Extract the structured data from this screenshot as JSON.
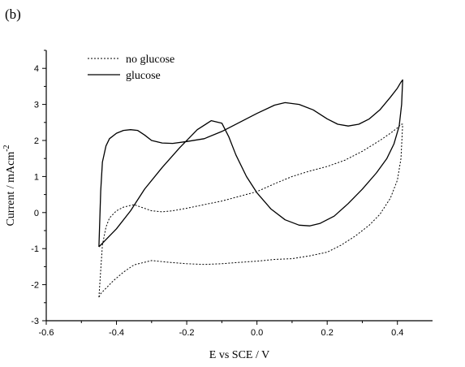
{
  "panel_label": "(b)",
  "chart_data": {
    "type": "line",
    "xlabel": "E vs SCE / V",
    "ylabel": "Current / mAcm",
    "ylabel_sup": "-2",
    "xlim": [
      -0.6,
      0.5
    ],
    "ylim": [
      -3,
      4.5
    ],
    "x_ticks": [
      -0.6,
      -0.4,
      -0.2,
      0.0,
      0.2,
      0.4
    ],
    "x_tick_labels": [
      "-0.6",
      "-0.4",
      "-0.2",
      "0.0",
      "0.2",
      "0.4"
    ],
    "y_ticks": [
      -3,
      -2,
      -1,
      0,
      1,
      2,
      3,
      4
    ],
    "y_tick_labels": [
      "-3",
      "-2",
      "-1",
      "0",
      "1",
      "2",
      "3",
      "4"
    ],
    "grid": false,
    "legend_position": "top-left",
    "series": [
      {
        "name": "no glucose",
        "style": "dotted",
        "x": [
          -0.45,
          -0.445,
          -0.44,
          -0.43,
          -0.42,
          -0.4,
          -0.38,
          -0.35,
          -0.33,
          -0.3,
          -0.27,
          -0.24,
          -0.2,
          -0.15,
          -0.1,
          -0.05,
          0.0,
          0.05,
          0.1,
          0.15,
          0.2,
          0.25,
          0.3,
          0.35,
          0.38,
          0.4,
          0.41,
          0.415,
          0.41,
          0.4,
          0.38,
          0.35,
          0.32,
          0.28,
          0.24,
          0.2,
          0.15,
          0.1,
          0.05,
          0.0,
          -0.05,
          -0.1,
          -0.15,
          -0.2,
          -0.25,
          -0.3,
          -0.35,
          -0.38,
          -0.41,
          -0.43,
          -0.445,
          -0.45
        ],
        "y": [
          -2.35,
          -1.6,
          -0.9,
          -0.4,
          -0.15,
          0.05,
          0.15,
          0.22,
          0.15,
          0.05,
          0.02,
          0.05,
          0.12,
          0.22,
          0.32,
          0.45,
          0.58,
          0.8,
          1.0,
          1.15,
          1.28,
          1.45,
          1.7,
          2.0,
          2.2,
          2.35,
          2.45,
          2.45,
          1.5,
          0.9,
          0.4,
          -0.05,
          -0.35,
          -0.65,
          -0.9,
          -1.1,
          -1.2,
          -1.28,
          -1.3,
          -1.35,
          -1.38,
          -1.42,
          -1.44,
          -1.42,
          -1.38,
          -1.33,
          -1.45,
          -1.65,
          -1.9,
          -2.1,
          -2.25,
          -2.35
        ]
      },
      {
        "name": "glucose",
        "style": "solid",
        "x": [
          -0.45,
          -0.445,
          -0.44,
          -0.43,
          -0.42,
          -0.4,
          -0.38,
          -0.36,
          -0.34,
          -0.32,
          -0.3,
          -0.27,
          -0.24,
          -0.2,
          -0.15,
          -0.1,
          -0.05,
          0.0,
          0.05,
          0.08,
          0.12,
          0.16,
          0.2,
          0.23,
          0.26,
          0.29,
          0.32,
          0.35,
          0.38,
          0.4,
          0.41,
          0.415,
          0.412,
          0.405,
          0.39,
          0.37,
          0.34,
          0.3,
          0.26,
          0.22,
          0.18,
          0.15,
          0.12,
          0.08,
          0.04,
          0.0,
          -0.03,
          -0.06,
          -0.08,
          -0.1,
          -0.13,
          -0.17,
          -0.22,
          -0.27,
          -0.32,
          -0.36,
          -0.4,
          -0.43,
          -0.45
        ],
        "y": [
          -0.95,
          0.6,
          1.4,
          1.85,
          2.05,
          2.2,
          2.28,
          2.3,
          2.28,
          2.15,
          2.0,
          1.93,
          1.92,
          1.97,
          2.05,
          2.25,
          2.5,
          2.75,
          2.98,
          3.05,
          3.0,
          2.85,
          2.6,
          2.45,
          2.4,
          2.45,
          2.6,
          2.85,
          3.2,
          3.45,
          3.62,
          3.68,
          3.0,
          2.4,
          1.9,
          1.5,
          1.1,
          0.65,
          0.25,
          -0.1,
          -0.3,
          -0.37,
          -0.35,
          -0.2,
          0.1,
          0.55,
          1.0,
          1.6,
          2.1,
          2.48,
          2.55,
          2.3,
          1.8,
          1.25,
          0.65,
          0.05,
          -0.45,
          -0.75,
          -0.95
        ]
      }
    ]
  }
}
